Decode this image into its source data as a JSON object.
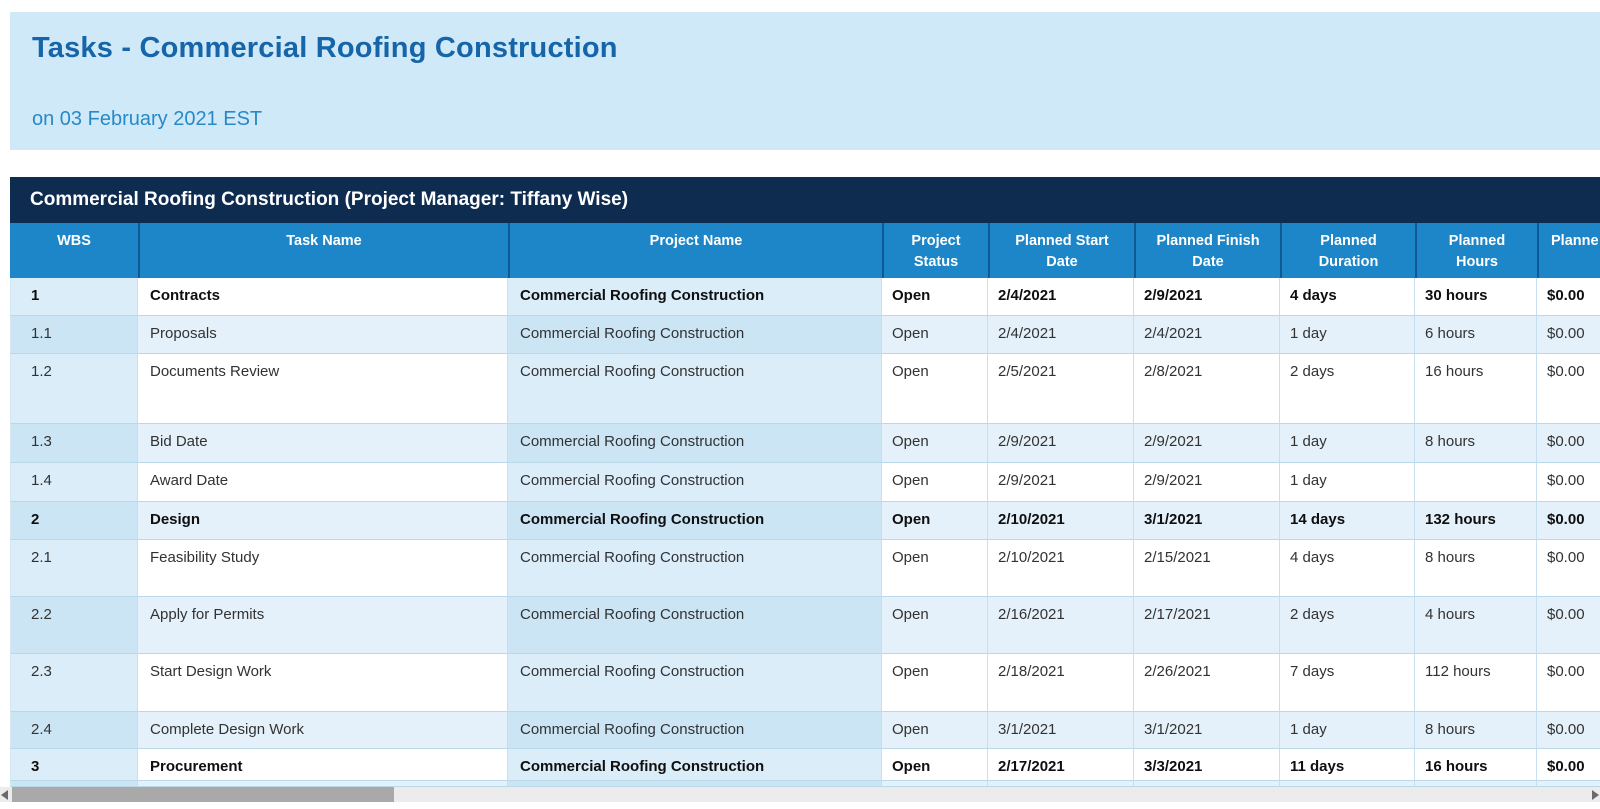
{
  "header": {
    "title": "Tasks - Commercial Roofing Construction",
    "subtitle": "on 03 February 2021 EST"
  },
  "table": {
    "project_banner": "Commercial Roofing Construction (Project Manager: Tiffany Wise)",
    "columns": [
      {
        "id": "wbs",
        "label": "WBS"
      },
      {
        "id": "task",
        "label": "Task Name"
      },
      {
        "id": "project",
        "label": "Project Name"
      },
      {
        "id": "status",
        "label": "Project\nStatus"
      },
      {
        "id": "start",
        "label": "Planned Start\nDate"
      },
      {
        "id": "finish",
        "label": "Planned Finish\nDate"
      },
      {
        "id": "duration",
        "label": "Planned\nDuration"
      },
      {
        "id": "hours",
        "label": "Planned\nHours"
      },
      {
        "id": "cost",
        "label": "Planne"
      }
    ],
    "rows": [
      {
        "wbs": "1",
        "task": "Contracts",
        "project": "Commercial Roofing Construction",
        "status": "Open",
        "start": "2/4/2021",
        "finish": "2/9/2021",
        "duration": "4 days",
        "hours": "30 hours",
        "cost": "$0.00",
        "summary": true
      },
      {
        "wbs": "1.1",
        "task": "Proposals",
        "project": "Commercial Roofing Construction",
        "status": "Open",
        "start": "2/4/2021",
        "finish": "2/4/2021",
        "duration": "1 day",
        "hours": "6 hours",
        "cost": "$0.00",
        "summary": false
      },
      {
        "wbs": "1.2",
        "task": "Documents Review",
        "project": "Commercial Roofing Construction",
        "status": "Open",
        "start": "2/5/2021",
        "finish": "2/8/2021",
        "duration": "2 days",
        "hours": "16 hours",
        "cost": "$0.00",
        "summary": false
      },
      {
        "wbs": "1.3",
        "task": "Bid Date",
        "project": "Commercial Roofing Construction",
        "status": "Open",
        "start": "2/9/2021",
        "finish": "2/9/2021",
        "duration": "1 day",
        "hours": "8 hours",
        "cost": "$0.00",
        "summary": false
      },
      {
        "wbs": "1.4",
        "task": "Award Date",
        "project": "Commercial Roofing Construction",
        "status": "Open",
        "start": "2/9/2021",
        "finish": "2/9/2021",
        "duration": "1 day",
        "hours": "",
        "cost": "$0.00",
        "summary": false
      },
      {
        "wbs": "2",
        "task": "Design",
        "project": "Commercial Roofing Construction",
        "status": "Open",
        "start": "2/10/2021",
        "finish": "3/1/2021",
        "duration": "14 days",
        "hours": "132 hours",
        "cost": "$0.00",
        "summary": true
      },
      {
        "wbs": "2.1",
        "task": "Feasibility Study",
        "project": "Commercial Roofing Construction",
        "status": "Open",
        "start": "2/10/2021",
        "finish": "2/15/2021",
        "duration": "4 days",
        "hours": "8 hours",
        "cost": "$0.00",
        "summary": false
      },
      {
        "wbs": "2.2",
        "task": "Apply for Permits",
        "project": "Commercial Roofing Construction",
        "status": "Open",
        "start": "2/16/2021",
        "finish": "2/17/2021",
        "duration": "2 days",
        "hours": "4 hours",
        "cost": "$0.00",
        "summary": false
      },
      {
        "wbs": "2.3",
        "task": "Start Design Work",
        "project": "Commercial Roofing Construction",
        "status": "Open",
        "start": "2/18/2021",
        "finish": "2/26/2021",
        "duration": "7 days",
        "hours": "112 hours",
        "cost": "$0.00",
        "summary": false
      },
      {
        "wbs": "2.4",
        "task": "Complete Design Work",
        "project": "Commercial Roofing Construction",
        "status": "Open",
        "start": "3/1/2021",
        "finish": "3/1/2021",
        "duration": "1 day",
        "hours": "8 hours",
        "cost": "$0.00",
        "summary": false
      },
      {
        "wbs": "3",
        "task": "Procurement",
        "project": "Commercial Roofing Construction",
        "status": "Open",
        "start": "2/17/2021",
        "finish": "3/3/2021",
        "duration": "11 days",
        "hours": "16 hours",
        "cost": "$0.00",
        "summary": true
      }
    ]
  },
  "colors": {
    "band_bg": "#cfe9f8",
    "title_text": "#1565a8",
    "subtitle_text": "#2789c8",
    "banner_bg": "#0e2c50",
    "column_header_bg": "#1c86c8",
    "row_white": "#ffffff",
    "row_blue": "#e4f1fa",
    "accent_on_white": "#daedf9",
    "accent_on_blue": "#cbe5f5"
  }
}
